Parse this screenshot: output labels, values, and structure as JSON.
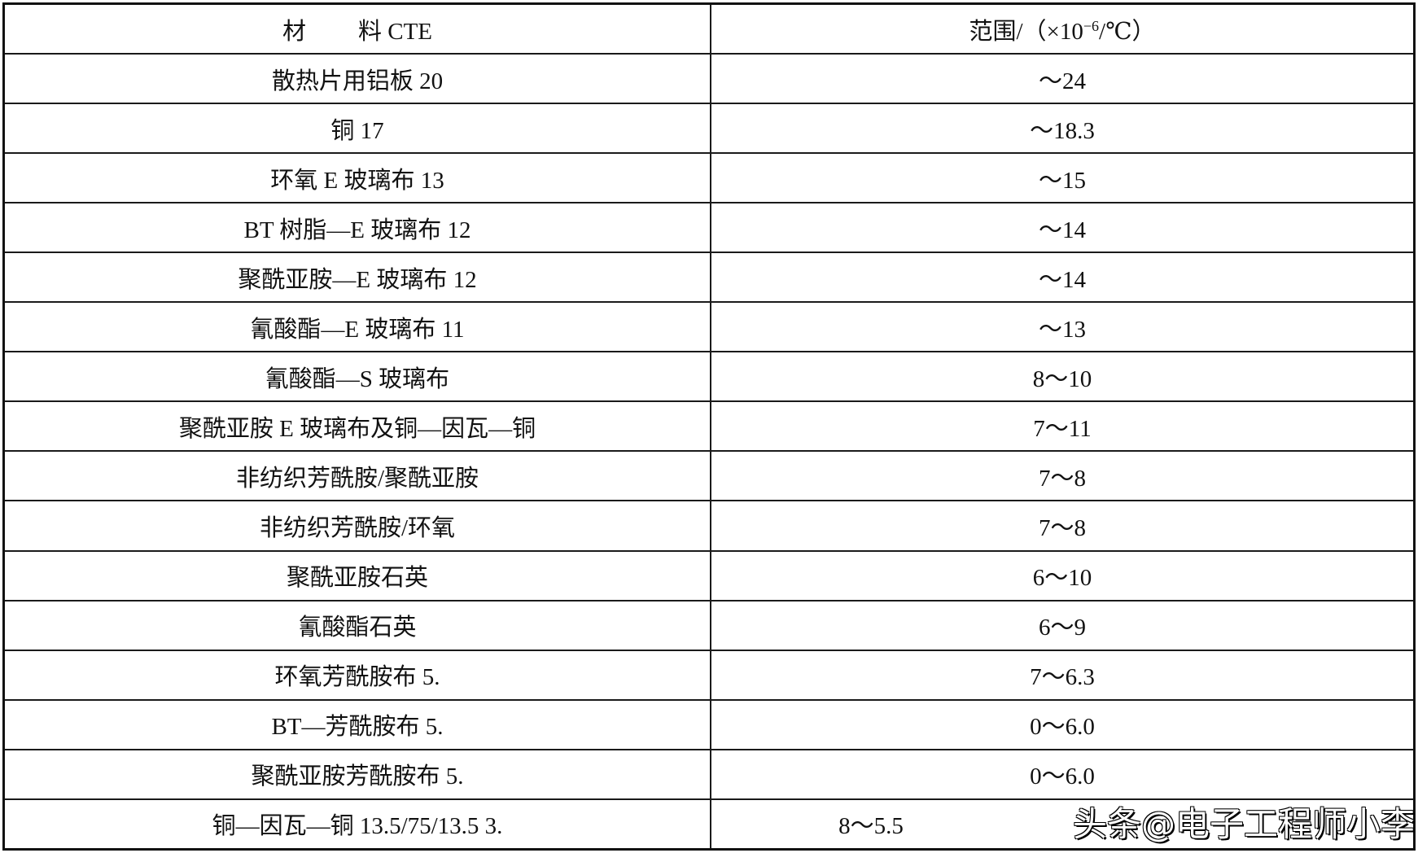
{
  "header": {
    "col1_a": "材",
    "col1_b": "料 CTE",
    "col2_prefix": "范围/（×10",
    "col2_sup": "−6",
    "col2_suffix": "/℃）"
  },
  "rows": [
    {
      "material": "散热片用铝板 20",
      "range": "～24"
    },
    {
      "material": "铜 17",
      "range": "～18.3"
    },
    {
      "material": "环氧 E 玻璃布 13",
      "range": "～15"
    },
    {
      "material": "BT 树脂—E 玻璃布 12",
      "range": "～14"
    },
    {
      "material": "聚酰亚胺—E 玻璃布 12",
      "range": "～14"
    },
    {
      "material": "氰酸酯—E 玻璃布 11",
      "range": "～13"
    },
    {
      "material": "氰酸酯—S 玻璃布",
      "range": "8～10"
    },
    {
      "material": "聚酰亚胺 E 玻璃布及铜—因瓦—铜",
      "range": "7～11"
    },
    {
      "material": "非纺织芳酰胺/聚酰亚胺",
      "range": "7～8"
    },
    {
      "material": "非纺织芳酰胺/环氧",
      "range": "7～8"
    },
    {
      "material": "聚酰亚胺石英",
      "range": "6～10"
    },
    {
      "material": "氰酸酯石英",
      "range": "6～9"
    },
    {
      "material": "环氧芳酰胺布 5.",
      "range": "7～6.3"
    },
    {
      "material": "BT—芳酰胺布 5.",
      "range": "0～6.0"
    },
    {
      "material": "聚酰亚胺芳酰胺布 5.",
      "range": "0～6.0"
    },
    {
      "material": "铜—因瓦—铜 13.5/75/13.5 3.",
      "range": "8～5.5"
    }
  ],
  "watermark": "头条@电子工程师小李"
}
